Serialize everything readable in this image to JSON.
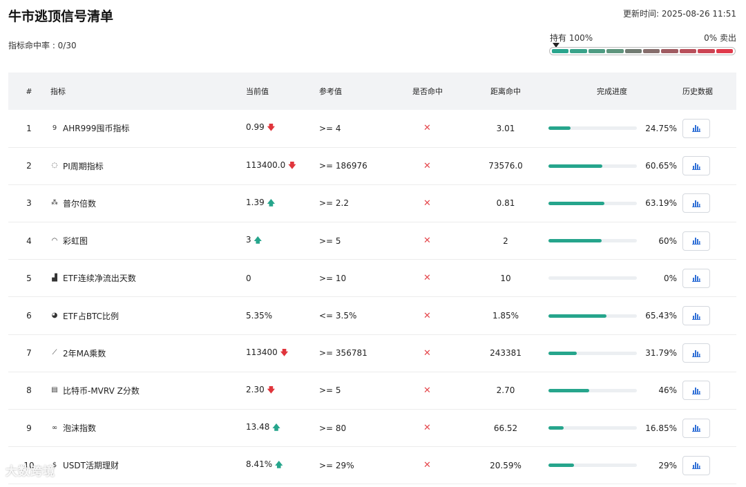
{
  "header": {
    "title": "牛市逃顶信号清单",
    "hit_rate": "指标命中率 : 0/30",
    "updated": "更新时间: 2025-08-26 11:51"
  },
  "gauge": {
    "left_label": "持有 100%",
    "right_label": "0% 卖出",
    "segments": [
      "#2aa58d",
      "#3aa38a",
      "#4f9c83",
      "#5f957d",
      "#727c73",
      "#866e6c",
      "#a05c62",
      "#b8505b",
      "#cc4554",
      "#e03a4b"
    ]
  },
  "table": {
    "columns": [
      "#",
      "指标",
      "当前值",
      "参考值",
      "是否命中",
      "距离命中",
      "完成进度",
      "历史数据"
    ],
    "rows": [
      {
        "num": "1",
        "icon": "ahr999-icon",
        "glyph": "9",
        "name": "AHR999囤币指标",
        "current": "0.99",
        "trend": "down",
        "ref": ">= 4",
        "hit": "✕",
        "distance": "3.01",
        "progress": 24.75,
        "pct": "24.75%"
      },
      {
        "num": "2",
        "icon": "pi-cycle-icon",
        "glyph": "◌",
        "name": "PI周期指标",
        "current": "113400.0",
        "trend": "down",
        "ref": ">= 186976",
        "hit": "✕",
        "distance": "73576.0",
        "progress": 60.65,
        "pct": "60.65%"
      },
      {
        "num": "3",
        "icon": "puell-multiple-icon",
        "glyph": "⁂",
        "name": "普尔倍数",
        "current": "1.39",
        "trend": "up",
        "ref": ">= 2.2",
        "hit": "✕",
        "distance": "0.81",
        "progress": 63.19,
        "pct": "63.19%"
      },
      {
        "num": "4",
        "icon": "rainbow-icon",
        "glyph": "◠",
        "name": "彩虹图",
        "current": "3",
        "trend": "up",
        "ref": ">= 5",
        "hit": "✕",
        "distance": "2",
        "progress": 60,
        "pct": "60%"
      },
      {
        "num": "5",
        "icon": "bar-chart-icon",
        "glyph": "▟",
        "name": "ETF连续净流出天数",
        "current": "0",
        "trend": "none",
        "ref": ">= 10",
        "hit": "✕",
        "distance": "10",
        "progress": 0,
        "pct": "0%"
      },
      {
        "num": "6",
        "icon": "pie-chart-icon",
        "glyph": "◕",
        "name": "ETF占BTC比例",
        "current": "5.35%",
        "trend": "none",
        "ref": "<= 3.5%",
        "hit": "✕",
        "distance": "1.85%",
        "progress": 65.43,
        "pct": "65.43%"
      },
      {
        "num": "7",
        "icon": "line-chart-icon",
        "glyph": "⟋",
        "name": "2年MA乘数",
        "current": "113400",
        "trend": "down",
        "ref": ">= 356781",
        "hit": "✕",
        "distance": "243381",
        "progress": 31.79,
        "pct": "31.79%"
      },
      {
        "num": "8",
        "icon": "calculator-icon",
        "glyph": "▤",
        "name": "比特币-MVRV Z分数",
        "current": "2.30",
        "trend": "down",
        "ref": ">= 5",
        "hit": "✕",
        "distance": "2.70",
        "progress": 46,
        "pct": "46%"
      },
      {
        "num": "9",
        "icon": "bubble-icon",
        "glyph": "∞",
        "name": "泡沫指数",
        "current": "13.48",
        "trend": "up",
        "ref": ">= 80",
        "hit": "✕",
        "distance": "66.52",
        "progress": 16.85,
        "pct": "16.85%"
      },
      {
        "num": "10",
        "icon": "dollar-icon",
        "glyph": "$",
        "name": "USDT活期理财",
        "current": "8.41%",
        "trend": "up",
        "ref": ">= 29%",
        "hit": "✕",
        "distance": "20.59%",
        "progress": 29,
        "pct": "29%"
      }
    ]
  },
  "watermark": "大数跨境",
  "colors": {
    "up": "#26a58c",
    "down": "#e0353c",
    "progress": "#26a58c",
    "hit_no": "#e5484d"
  }
}
